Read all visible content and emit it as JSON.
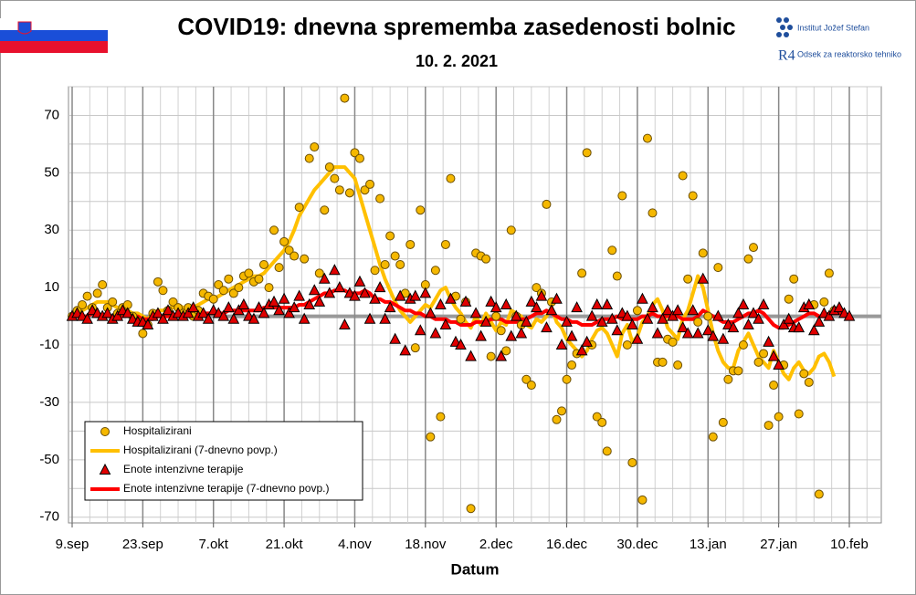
{
  "chart_data": {
    "type": "line",
    "title": "COVID19: dnevna sprememba zasedenosti bolnic",
    "subtitle": "10. 2. 2021",
    "logo_texts": [
      "Institut Jožef Stefan",
      "Odsek za reaktorsko tehniko"
    ],
    "x_label": "Datum",
    "categories": [
      "9.sep",
      null,
      null,
      null,
      null,
      null,
      null,
      null,
      null,
      null,
      null,
      null,
      null,
      null,
      "23.sep",
      null,
      null,
      null,
      null,
      null,
      null,
      null,
      null,
      null,
      null,
      null,
      null,
      null,
      "7.okt",
      null,
      null,
      null,
      null,
      null,
      null,
      null,
      null,
      null,
      null,
      null,
      null,
      null,
      "21.okt",
      null,
      null,
      null,
      null,
      null,
      null,
      null,
      null,
      null,
      null,
      null,
      null,
      null,
      "4.nov",
      null,
      null,
      null,
      null,
      null,
      null,
      null,
      null,
      null,
      null,
      null,
      null,
      null,
      "18.nov",
      null,
      null,
      null,
      null,
      null,
      null,
      null,
      null,
      null,
      null,
      null,
      null,
      null,
      "2.dec",
      null,
      null,
      null,
      null,
      null,
      null,
      null,
      null,
      null,
      null,
      null,
      null,
      null,
      "16.dec",
      null,
      null,
      null,
      null,
      null,
      null,
      null,
      null,
      null,
      null,
      null,
      null,
      null,
      "30.dec",
      null,
      null,
      null,
      null,
      null,
      null,
      null,
      null,
      null,
      null,
      null,
      null,
      null,
      "13.jan",
      null,
      null,
      null,
      null,
      null,
      null,
      null,
      null,
      null,
      null,
      null,
      null,
      null,
      "27.jan",
      null,
      null,
      null,
      null,
      null,
      null,
      null,
      null,
      null,
      null,
      null,
      null,
      null,
      "10.feb"
    ],
    "ylim": [
      -72,
      80
    ],
    "yticks": [
      -70,
      -50,
      -30,
      -10,
      10,
      30,
      50,
      70
    ],
    "minor_yticks": [
      -60,
      -40,
      -20,
      0,
      20,
      40,
      60,
      80
    ],
    "grid": true,
    "legend": "lower left",
    "series": [
      {
        "name": "Hospitalizirani",
        "style": "markers",
        "marker": "circle",
        "color": "#f5b800",
        "values": [
          0,
          2,
          4,
          7,
          3,
          8,
          11,
          3,
          5,
          1,
          3,
          4,
          0,
          -2,
          -6,
          -3,
          1,
          12,
          9,
          2,
          5,
          3,
          1,
          3,
          0,
          2,
          8,
          7,
          6,
          11,
          9,
          13,
          8,
          10,
          14,
          15,
          12,
          13,
          18,
          10,
          30,
          17,
          26,
          23,
          21,
          38,
          20,
          55,
          59,
          15,
          37,
          52,
          48,
          44,
          76,
          43,
          57,
          55,
          44,
          46,
          16,
          41,
          18,
          28,
          21,
          18,
          8,
          25,
          -11,
          37,
          11,
          -42,
          16,
          -35,
          25,
          48,
          7,
          -1,
          5,
          -67,
          22,
          21,
          20,
          -14,
          0,
          -5,
          -12,
          30,
          0,
          -3,
          -22,
          -24,
          10,
          8,
          39,
          5,
          -36,
          -33,
          -22,
          -17,
          -13,
          15,
          57,
          -10,
          -35,
          -37,
          -47,
          23,
          14,
          42,
          -10,
          -51,
          2,
          -64,
          62,
          36,
          -16,
          -16,
          -8,
          -9,
          -17,
          49,
          13,
          42,
          -2,
          22,
          0,
          -42,
          17,
          -37,
          -22,
          -19,
          -19,
          -10,
          20,
          24,
          -16,
          -13,
          -38,
          -24,
          -35,
          -17,
          6,
          13,
          -34,
          -20,
          -23,
          4,
          -62,
          5,
          15,
          2,
          null,
          null,
          null
        ]
      },
      {
        "name": "Hospitalizirani (7-dnevno povp.)",
        "style": "line",
        "color": "#ffc000",
        "values": [
          1,
          1,
          2,
          3,
          4,
          5,
          5,
          5,
          4,
          3,
          2,
          2,
          1,
          1,
          0,
          -1,
          1,
          2,
          2,
          3,
          3,
          4,
          3,
          3,
          3,
          4,
          5,
          6,
          6,
          7,
          8,
          9,
          10,
          11,
          12,
          13,
          14,
          14,
          15,
          17,
          19,
          21,
          23,
          26,
          30,
          35,
          38,
          41,
          44,
          46,
          48,
          50,
          52,
          52,
          52,
          50,
          48,
          42,
          36,
          30,
          24,
          18,
          13,
          9,
          5,
          2,
          0,
          -2,
          0,
          2,
          4,
          3,
          6,
          9,
          10,
          6,
          3,
          1,
          -2,
          -4,
          0,
          -3,
          1,
          -2,
          -5,
          -2,
          -3,
          2,
          1,
          0,
          -3,
          -4,
          -1,
          -2,
          0,
          3,
          -2,
          -4,
          -8,
          -10,
          -12,
          -14,
          -12,
          -8,
          -5,
          -4,
          -6,
          -10,
          -14,
          -6,
          -3,
          -9,
          -7,
          -2,
          0,
          4,
          6,
          2,
          -4,
          -6,
          -8,
          -1,
          2,
          8,
          14,
          10,
          2,
          -6,
          -12,
          -16,
          -18,
          -18,
          -12,
          -9,
          -6,
          -10,
          -14,
          -16,
          -18,
          -12,
          -16,
          -20,
          -22,
          -18,
          -16,
          -19,
          -20,
          -18,
          -14,
          -13,
          -16,
          -21,
          null,
          null,
          null
        ]
      },
      {
        "name": "Enote intenzivne terapije",
        "style": "markers",
        "marker": "triangle",
        "color": "#e00000",
        "values": [
          0,
          1,
          0,
          -1,
          2,
          1,
          0,
          1,
          -1,
          0,
          2,
          1,
          -1,
          -2,
          -2,
          -3,
          0,
          1,
          -1,
          2,
          0,
          1,
          0,
          1,
          3,
          0,
          1,
          -1,
          2,
          1,
          0,
          3,
          -1,
          2,
          4,
          0,
          -1,
          3,
          1,
          4,
          5,
          2,
          6,
          1,
          3,
          7,
          -1,
          4,
          9,
          5,
          13,
          8,
          16,
          10,
          -3,
          8,
          7,
          12,
          8,
          -1,
          6,
          10,
          -1,
          3,
          -8,
          7,
          -12,
          6,
          7,
          -5,
          8,
          1,
          -6,
          4,
          -3,
          6,
          -9,
          -10,
          5,
          -14,
          1,
          -7,
          -2,
          5,
          3,
          -14,
          4,
          -7,
          0,
          -6,
          -2,
          5,
          3,
          7,
          -4,
          2,
          6,
          -10,
          -2,
          -7,
          3,
          -12,
          -9,
          0,
          4,
          -2,
          4,
          -1,
          -5,
          1,
          0,
          -3,
          -8,
          6,
          -1,
          3,
          -6,
          -1,
          2,
          0,
          2,
          -4,
          -6,
          2,
          -6,
          13,
          -5,
          -7,
          0,
          -8,
          -3,
          -4,
          1,
          4,
          -3,
          1,
          -1,
          4,
          -9,
          -14,
          -17,
          -3,
          -1,
          -4,
          -4,
          3,
          4,
          -5,
          -2,
          1,
          0,
          2,
          3,
          1,
          0
        ]
      },
      {
        "name": "Enote intenzivne terapije (7-dnevno povp.)",
        "style": "line",
        "color": "#ff0000",
        "values": [
          0,
          0,
          0,
          0,
          1,
          1,
          0,
          0,
          0,
          0,
          0,
          1,
          0,
          0,
          -1,
          -1,
          -1,
          0,
          0,
          0,
          0,
          1,
          1,
          1,
          1,
          1,
          1,
          1,
          1,
          1,
          1,
          2,
          2,
          2,
          2,
          2,
          2,
          2,
          3,
          3,
          3,
          3,
          3,
          3,
          3,
          4,
          4,
          5,
          6,
          7,
          8,
          8,
          9,
          9,
          9,
          8,
          8,
          8,
          9,
          8,
          6,
          6,
          5,
          5,
          4,
          3,
          2,
          2,
          1,
          1,
          0,
          0,
          -1,
          -1,
          -1,
          -2,
          -2,
          -3,
          -3,
          -3,
          -2,
          -2,
          -2,
          -1,
          -1,
          -1,
          -2,
          -2,
          -2,
          -1,
          -1,
          0,
          1,
          1,
          2,
          1,
          0,
          -1,
          -1,
          -2,
          -2,
          -3,
          -3,
          -3,
          -2,
          -1,
          -1,
          -1,
          0,
          -1,
          -1,
          -1,
          -1,
          0,
          0,
          1,
          0,
          0,
          0,
          0,
          0,
          -1,
          -1,
          -1,
          0,
          2,
          1,
          0,
          -1,
          -2,
          -2,
          -2,
          -1,
          0,
          1,
          1,
          2,
          1,
          -1,
          -3,
          -4,
          -4,
          -3,
          -2,
          -1,
          0,
          1,
          1,
          0,
          0,
          1,
          1,
          1,
          1,
          null
        ]
      }
    ]
  }
}
